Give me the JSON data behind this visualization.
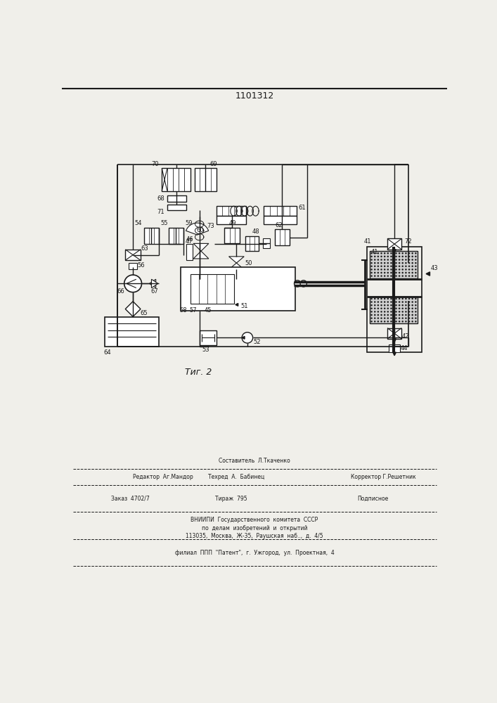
{
  "title": "1101312",
  "fig_label": "Τиг. 2",
  "bg_color": "#f0efea",
  "line_color": "#1a1a1a",
  "footer_line1_left": "Редактор  Аг.Мандор",
  "footer_line1_center": "Техред  А.  Бабинец",
  "footer_line1_top": "Составитель  Л.Ткаченко",
  "footer_line1_right": "Корректор Г.Решетник",
  "footer_line2_left": "Заказ  4702/7",
  "footer_line2_center": "Тираж  795",
  "footer_line2_right": "Подписное",
  "footer_line3": "ВНИИПИ  Государственного  комитета  СССР",
  "footer_line4": "по  делам  изобретений  и  открытий",
  "footer_line5": "113035,  Москва,  Ж-35,  Раушская  наб..,  д.  4/5",
  "footer_line6": "филиал  ППП  \"Патент\",  г.  Ужгород,  ул.  Проектная,  4"
}
